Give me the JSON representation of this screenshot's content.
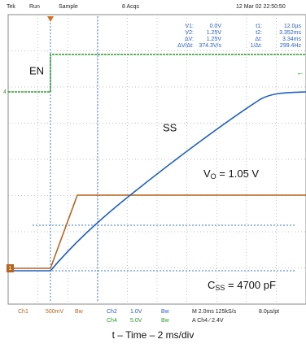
{
  "header": {
    "brand": "Tek",
    "state": "Run",
    "mode": "Sample",
    "acqs": "8 Acqs",
    "timestamp": "12 Mar 02 22:50:50"
  },
  "readout": {
    "rows": [
      [
        "V1:",
        "0.0V",
        "t1:",
        "12.0µs"
      ],
      [
        "V2:",
        "1.25V",
        "t2:",
        "3.352ms"
      ],
      [
        "ΔV:",
        "1.25V",
        "Δt:",
        "3.34ms"
      ],
      [
        "ΔV/Δt:",
        "374.3V/s",
        "1/Δt:",
        "299.4Hz"
      ]
    ]
  },
  "traces": {
    "en": "EN",
    "ss": "SS",
    "vo_label": "V",
    "vo_sub": "O",
    "vo_value": " = 1.05 V",
    "css_label": "C",
    "css_sub": "SS",
    "css_value": " = 4700 pF",
    "ch4_marker": "4",
    "ch1_marker": "1"
  },
  "status": {
    "ch1": "Ch1",
    "ch1_scale": "500mV",
    "bw1": "Bw",
    "ch2": "Ch2",
    "ch2_scale": "1.0V",
    "bw2": "Bw",
    "ch4": "Ch4",
    "ch4_scale": "5.0V",
    "bw4": "Bw",
    "time": "M 2.0ms 125kS/s",
    "res": "8.0µs/pt",
    "trigger": "A Ch4 ⁄ 2.4V"
  },
  "caption": "t – Time – 2 ms/div"
}
